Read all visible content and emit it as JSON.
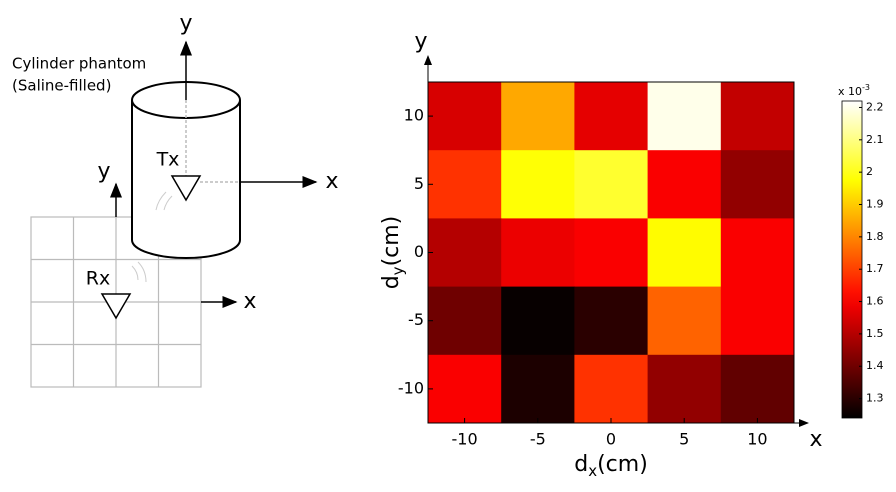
{
  "diagram": {
    "title_line1": "Cylinder phantom",
    "title_line2": "(Saline-filled)",
    "tx_label": "Tx",
    "rx_label": "Rx",
    "tx_axis_y": "y",
    "tx_axis_x": "x",
    "rx_axis_y": "y",
    "rx_axis_x": "x"
  },
  "chart_data": {
    "type": "heatmap",
    "x": [
      -10,
      -5,
      0,
      5,
      10
    ],
    "y": [
      10,
      5,
      0,
      -5,
      -10
    ],
    "z": [
      [
        1.55,
        1.85,
        1.57,
        2.2,
        1.52
      ],
      [
        1.68,
        1.98,
        2.02,
        1.6,
        1.45
      ],
      [
        1.5,
        1.58,
        1.6,
        1.97,
        1.6
      ],
      [
        1.4,
        1.25,
        1.3,
        1.75,
        1.6
      ],
      [
        1.6,
        1.28,
        1.68,
        1.45,
        1.38
      ]
    ],
    "xlim": [
      -12.5,
      12.5
    ],
    "ylim": [
      -12.5,
      12.5
    ],
    "xticks": [
      -10,
      -5,
      0,
      5,
      10
    ],
    "yticks": [
      -10,
      -5,
      0,
      5,
      10
    ],
    "x_label": {
      "main": "d",
      "sub": "x",
      "unit": "(cm)"
    },
    "y_label": {
      "main": "d",
      "sub": "y",
      "unit": "(cm)"
    },
    "x_arrow_label": "x",
    "y_arrow_label": "y",
    "colormap": "hot",
    "clim": [
      1.24,
      2.22
    ],
    "colorbar_ticks": [
      1.3,
      1.4,
      1.5,
      1.6,
      1.7,
      1.8,
      1.9,
      2,
      2.1,
      2.2
    ],
    "colorbar_scale": {
      "base": "x 10",
      "exponent": "-3"
    }
  }
}
